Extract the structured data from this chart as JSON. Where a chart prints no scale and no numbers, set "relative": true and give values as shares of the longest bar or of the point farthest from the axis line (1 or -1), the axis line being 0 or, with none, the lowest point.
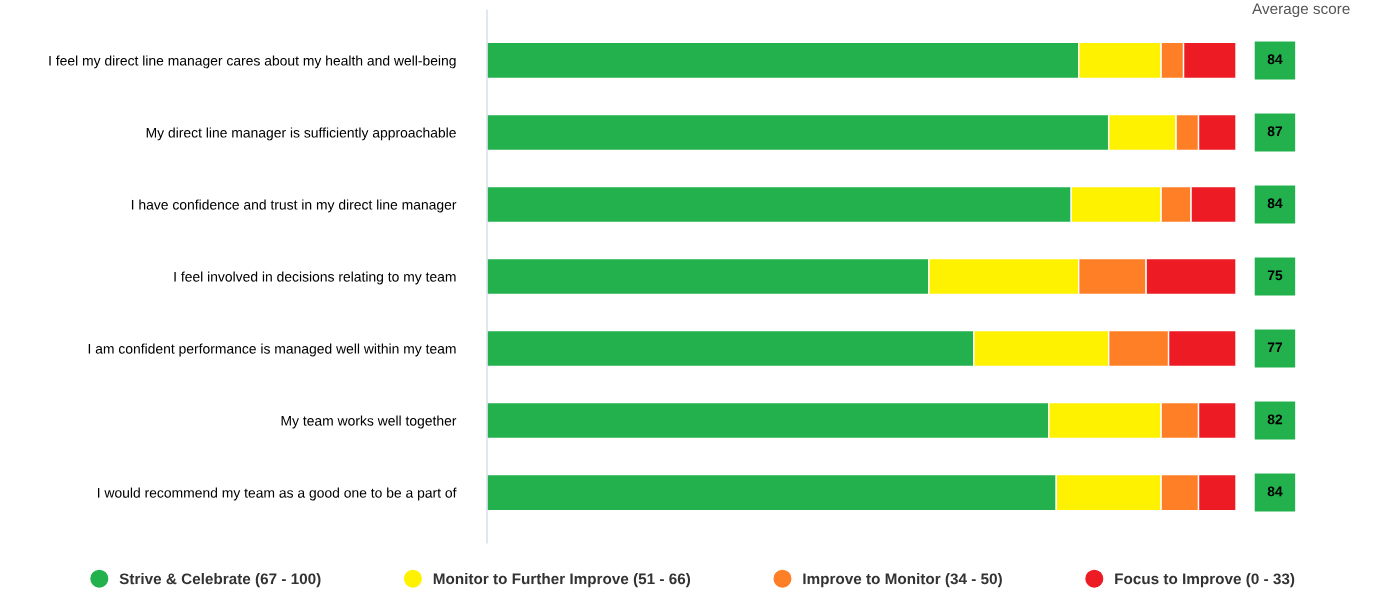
{
  "chart_data": {
    "type": "bar",
    "orientation": "horizontal",
    "stacked": true,
    "relative": true,
    "legend": "bottom",
    "marker": "circle",
    "grid": false,
    "categories": [
      "I feel my direct line manager cares about my health and well-being",
      "My direct line manager is sufficiently approachable",
      "I have confidence and trust in my direct line manager",
      "I feel involved in decisions relating to my team",
      "I am confident performance is managed well within my team",
      "My team works well together",
      "I would recommend my team as a good one to be a part of"
    ],
    "series": [
      {
        "name": "Strive & Celebrate (67 - 100)",
        "color": "#22b14c",
        "values": [
          0.79,
          0.83,
          0.78,
          0.59,
          0.65,
          0.75,
          0.76
        ]
      },
      {
        "name": "Monitor to Further Improve (51 - 66)",
        "color": "#fff200",
        "values": [
          0.11,
          0.09,
          0.12,
          0.2,
          0.18,
          0.15,
          0.14
        ]
      },
      {
        "name": "Improve to Monitor (34 - 50)",
        "color": "#ff7f27",
        "values": [
          0.03,
          0.03,
          0.04,
          0.09,
          0.08,
          0.05,
          0.05
        ]
      },
      {
        "name": "Focus to Improve (0 - 33)",
        "color": "#ed1c24",
        "values": [
          0.07,
          0.05,
          0.06,
          0.12,
          0.09,
          0.05,
          0.05
        ]
      }
    ],
    "annotations": [
      "Average score",
      "84",
      "87",
      "84",
      "75",
      "77",
      "82",
      "84"
    ]
  }
}
